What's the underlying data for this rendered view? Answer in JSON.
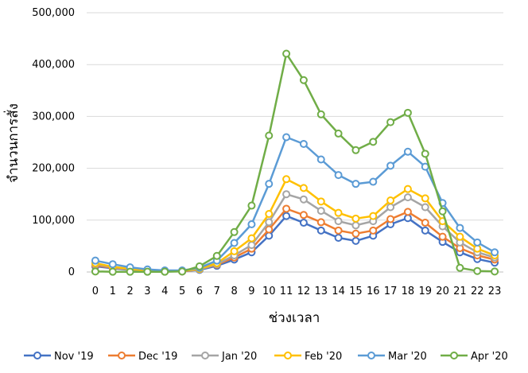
{
  "chart_data": {
    "type": "line",
    "title": "",
    "xlabel": "ช่วงเวลา",
    "ylabel": "จำนวนการสั่ง",
    "ylim": [
      0,
      500000
    ],
    "yticks": [
      0,
      100000,
      200000,
      300000,
      400000,
      500000
    ],
    "ytick_labels": [
      "0",
      "100,000",
      "200,000",
      "300,000",
      "400,000",
      "500,000"
    ],
    "x": [
      "0",
      "1",
      "2",
      "3",
      "4",
      "5",
      "6",
      "7",
      "8",
      "9",
      "10",
      "11",
      "12",
      "13",
      "14",
      "15",
      "16",
      "17",
      "18",
      "19",
      "20",
      "21",
      "22",
      "23"
    ],
    "grid": "horizontal",
    "legend_position": "bottom",
    "series": [
      {
        "name": "Nov '19",
        "color": "#4472C4",
        "values": [
          11000,
          7000,
          4000,
          2000,
          1000,
          1000,
          4000,
          12000,
          24000,
          38000,
          70000,
          108000,
          95000,
          80000,
          66000,
          60000,
          70000,
          92000,
          104000,
          80000,
          58000,
          38000,
          25000,
          18000
        ]
      },
      {
        "name": "Dec '19",
        "color": "#ED7D31",
        "values": [
          13000,
          8000,
          5000,
          2000,
          1000,
          1000,
          5000,
          14000,
          28000,
          45000,
          82000,
          122000,
          110000,
          96000,
          80000,
          74000,
          80000,
          102000,
          116000,
          95000,
          68000,
          46000,
          32000,
          24000
        ]
      },
      {
        "name": "Jan '20",
        "color": "#A5A5A5",
        "values": [
          15000,
          9000,
          5000,
          3000,
          2000,
          2000,
          5000,
          15000,
          32000,
          52000,
          96000,
          150000,
          140000,
          118000,
          98000,
          90000,
          98000,
          125000,
          144000,
          125000,
          88000,
          57000,
          38000,
          28000
        ]
      },
      {
        "name": "Feb '20",
        "color": "#FFC000",
        "values": [
          17000,
          10000,
          6000,
          3000,
          2000,
          2000,
          6000,
          17000,
          40000,
          65000,
          112000,
          179000,
          162000,
          136000,
          114000,
          103000,
          108000,
          138000,
          160000,
          142000,
          98000,
          68000,
          45000,
          32000
        ]
      },
      {
        "name": "Mar '20",
        "color": "#5B9BD5",
        "values": [
          22000,
          15000,
          9000,
          5000,
          3000,
          3000,
          8000,
          22000,
          56000,
          92000,
          170000,
          260000,
          247000,
          217000,
          187000,
          170000,
          174000,
          205000,
          232000,
          203000,
          133000,
          85000,
          57000,
          38000
        ]
      },
      {
        "name": "Apr '20",
        "color": "#70AD47",
        "values": [
          1000,
          500,
          500,
          500,
          500,
          1000,
          11000,
          31000,
          77000,
          128000,
          263000,
          421000,
          370000,
          304000,
          267000,
          235000,
          251000,
          289000,
          307000,
          228000,
          117000,
          8000,
          2000,
          1000
        ]
      }
    ]
  }
}
